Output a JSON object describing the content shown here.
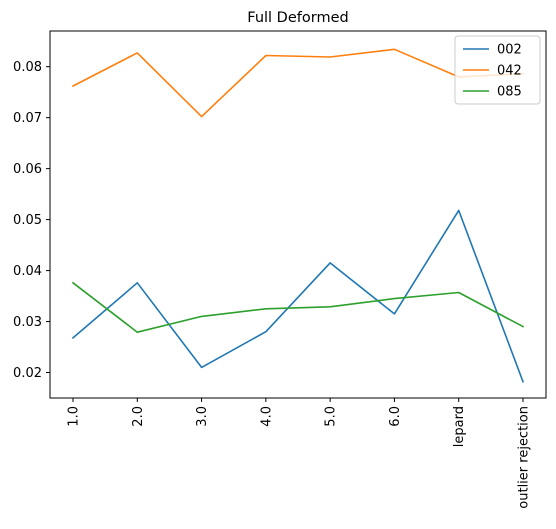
{
  "chart_data": {
    "type": "line",
    "title": "Full Deformed",
    "xlabel": "",
    "ylabel": "",
    "categories": [
      "1.0",
      "2.0",
      "3.0",
      "4.0",
      "5.0",
      "6.0",
      "lepard",
      "outlier rejection"
    ],
    "ylim": [
      0.015,
      0.087
    ],
    "yticks": [
      0.02,
      0.03,
      0.04,
      0.05,
      0.06,
      0.07,
      0.08
    ],
    "ytick_labels": [
      "0.02",
      "0.03",
      "0.04",
      "0.05",
      "0.06",
      "0.07",
      "0.08"
    ],
    "grid": false,
    "legend_position": "top-right",
    "series": [
      {
        "name": "002",
        "color": "#1f77b4",
        "values": [
          0.0268,
          0.0376,
          0.021,
          0.028,
          0.0415,
          0.0315,
          0.0518,
          0.0182
        ]
      },
      {
        "name": "042",
        "color": "#ff7f0e",
        "values": [
          0.0762,
          0.0827,
          0.0702,
          0.0822,
          0.0819,
          0.0834,
          0.078,
          0.0786
        ]
      },
      {
        "name": "085",
        "color": "#2ca02c",
        "values": [
          0.0376,
          0.0279,
          0.031,
          0.0325,
          0.0329,
          0.0345,
          0.0357,
          0.029
        ]
      }
    ]
  }
}
